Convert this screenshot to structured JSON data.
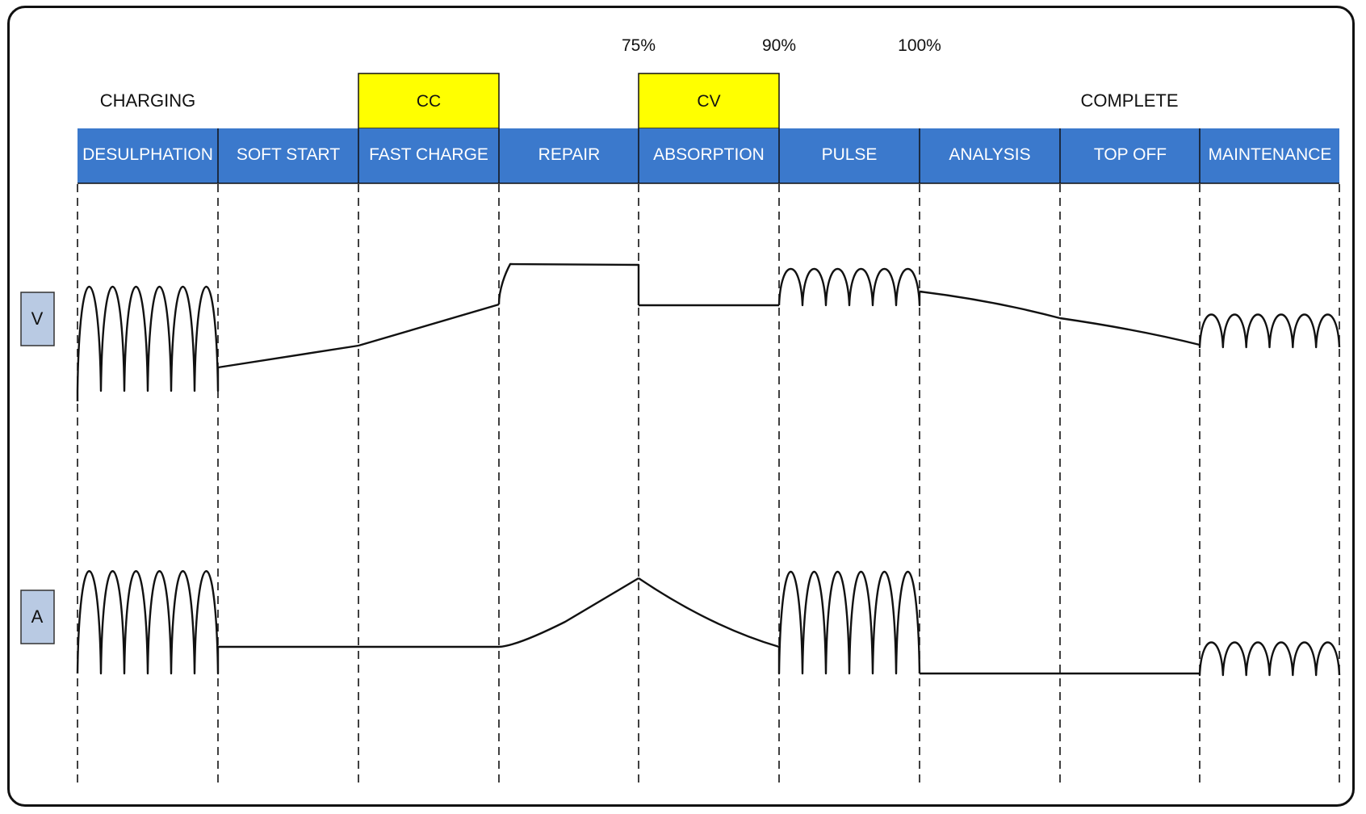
{
  "colors": {
    "stage_bar": "#3B79CC",
    "stage_text": "#ffffff",
    "mode_box": "#FFFF00",
    "axis_box": "#B9CAE3",
    "waveform": "#111111"
  },
  "charging_label": "CHARGING",
  "complete_label": "COMPLETE",
  "percent_markers": [
    "75%",
    "90%",
    "100%"
  ],
  "modes": [
    "CC",
    "CV"
  ],
  "stages": [
    "DESULPHATION",
    "SOFT START",
    "FAST CHARGE",
    "REPAIR",
    "ABSORPTION",
    "PULSE",
    "ANALYSIS",
    "TOP OFF",
    "MAINTENANCE"
  ],
  "axes": {
    "voltage": "V",
    "current": "A"
  }
}
